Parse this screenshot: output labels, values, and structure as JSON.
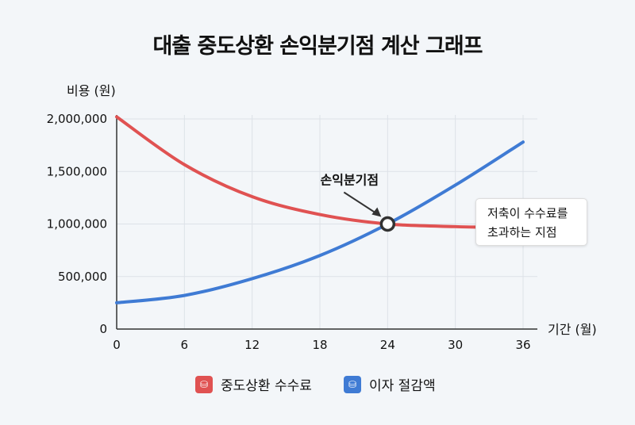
{
  "chart_data": {
    "type": "line",
    "title": "대출 중도상환 손익분기점 계산 그래프",
    "ylabel": "비용 (원)",
    "xlabel": "기간 (월)",
    "xlim": [
      0,
      36
    ],
    "ylim": [
      0,
      2000000
    ],
    "xticks": [
      0,
      6,
      12,
      18,
      24,
      30,
      36
    ],
    "yticks": [
      0,
      500000,
      1000000,
      1500000,
      2000000
    ],
    "ytick_labels": [
      "0",
      "500,000",
      "1,000,000",
      "1,500,000",
      "2,000,000"
    ],
    "grid": true,
    "legend_placement": "bottom",
    "series": [
      {
        "name": "중도상환 수수료",
        "color": "#e05252",
        "x": [
          0,
          6,
          12,
          18,
          24,
          30,
          32
        ],
        "y": [
          2020000,
          1565000,
          1260000,
          1090000,
          1000000,
          975000,
          970000
        ]
      },
      {
        "name": "이자 절감액",
        "color": "#3f7bd4",
        "x": [
          0,
          6,
          12,
          18,
          24,
          30,
          36
        ],
        "y": [
          250000,
          320000,
          480000,
          700000,
          1000000,
          1370000,
          1780000
        ]
      }
    ],
    "annotations": [
      {
        "text": "손익분기점",
        "x": 24,
        "y": 1000000
      },
      {
        "text_line1": "저축이 수수료를",
        "text_line2": "초과하는 지점"
      }
    ]
  }
}
